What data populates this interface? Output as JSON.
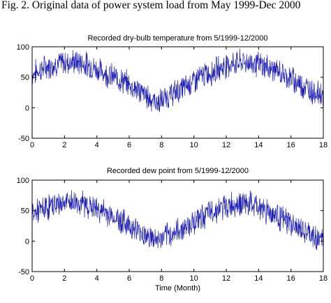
{
  "caption": "Fig. 2.  Original data of power system load from May 1999-Dec 2000",
  "colors": {
    "series": "#1f1fb4",
    "axes": "#000000",
    "background": "#ffffff"
  },
  "chart_data": [
    {
      "type": "line",
      "title": "Recorded dry-bulb temperature from 5/1999-12/2000",
      "xlabel": "",
      "ylabel": "",
      "xlim": [
        0,
        18
      ],
      "ylim": [
        -50,
        100
      ],
      "xticks": [
        0,
        2,
        4,
        6,
        8,
        10,
        12,
        14,
        16,
        18
      ],
      "yticks": [
        -50,
        0,
        50,
        100
      ],
      "grid": false,
      "series": [
        {
          "x": [
            0,
            0.5,
            1,
            1.5,
            2,
            2.5,
            3,
            3.5,
            4,
            4.5,
            5,
            5.5,
            6,
            6.5,
            7,
            7.5,
            7.8,
            8.2,
            8.5,
            9,
            9.5,
            10,
            10.5,
            11,
            11.5,
            12,
            12.5,
            13,
            13.5,
            14,
            14.5,
            15,
            15.5,
            16,
            16.5,
            17,
            17.5,
            18
          ],
          "y": [
            55,
            62,
            68,
            72,
            74,
            75,
            74,
            70,
            63,
            57,
            51,
            45,
            38,
            30,
            20,
            12,
            8,
            15,
            20,
            27,
            35,
            44,
            52,
            57,
            64,
            70,
            73,
            75,
            74,
            71,
            67,
            62,
            55,
            48,
            40,
            32,
            25,
            22
          ]
        }
      ]
    },
    {
      "type": "line",
      "title": "Recorded dew point from 5/1999-12/2000",
      "xlabel": "Time (Month)",
      "ylabel": "",
      "xlim": [
        0,
        18
      ],
      "ylim": [
        -50,
        100
      ],
      "xticks": [
        0,
        2,
        4,
        6,
        8,
        10,
        12,
        14,
        16,
        18
      ],
      "yticks": [
        -50,
        0,
        50,
        100
      ],
      "grid": false,
      "series": [
        {
          "x": [
            0,
            0.5,
            1,
            1.5,
            2,
            2.5,
            3,
            3.5,
            4,
            4.5,
            5,
            5.5,
            6,
            6.5,
            7,
            7.5,
            7.8,
            8.2,
            8.5,
            9,
            9.5,
            10,
            10.5,
            11,
            11.5,
            12,
            12.5,
            13,
            13.5,
            14,
            14.5,
            15,
            15.5,
            16,
            16.5,
            17,
            17.5,
            18
          ],
          "y": [
            45,
            50,
            56,
            60,
            63,
            64,
            62,
            58,
            52,
            47,
            40,
            34,
            26,
            18,
            10,
            3,
            2,
            6,
            10,
            16,
            24,
            32,
            40,
            46,
            52,
            57,
            61,
            62,
            60,
            56,
            50,
            44,
            36,
            28,
            20,
            12,
            5,
            3
          ]
        }
      ]
    }
  ]
}
